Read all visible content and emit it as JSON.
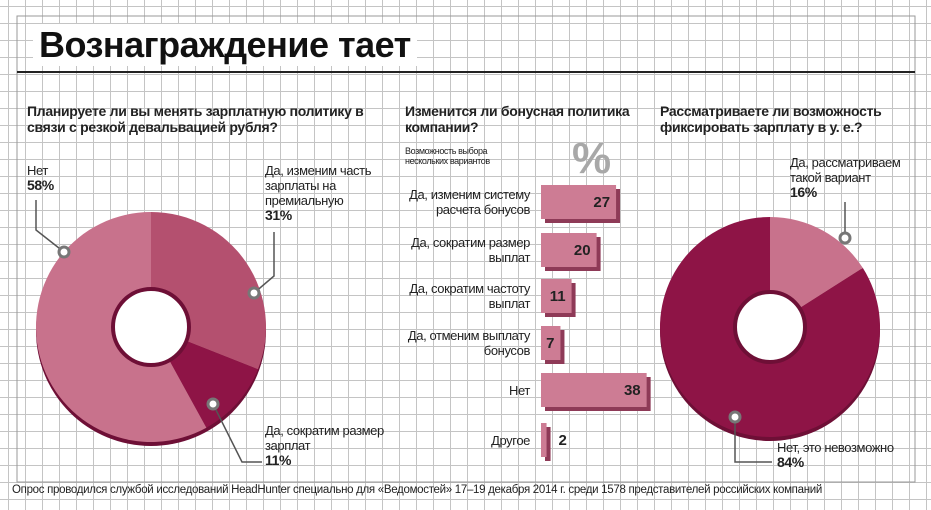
{
  "title": "Вознаграждение тает",
  "footnote": "Опрос проводился службой исследований HeadHunter специально для «Ведомостей» 17–19 декабря 2014 г. среди 1578 представителей российских компаний",
  "chart_data": [
    {
      "type": "donut",
      "title": "Планируете ли вы менять зарплатную политику в связи с резкой девальвацией рубля?",
      "categories": [
        "Да, изменим часть зарплаты на премиальную",
        "Да, сократим размер зарплат",
        "Нет"
      ],
      "values": [
        31,
        11,
        58
      ],
      "value_labels": [
        "31%",
        "11%",
        "58%"
      ],
      "colors": [
        "#b4506f",
        "#8e1446",
        "#c8728c"
      ]
    },
    {
      "type": "bar",
      "title": "Изменится ли бонусная политика компании?",
      "subtitle": "Возможность выбора нескольких вариантов",
      "unit": "%",
      "categories": [
        "Да, изменим систему расчета бонусов",
        "Да, сократим размер выплат",
        "Да, сократим частоту выплат",
        "Да, отменим выплату бонусов",
        "Нет",
        "Другое"
      ],
      "values": [
        27,
        20,
        11,
        7,
        38,
        2
      ],
      "color": "#cd7c94"
    },
    {
      "type": "donut",
      "title": "Рассматриваете ли возможность фиксировать зарплату в у. е.?",
      "categories": [
        "Да, рассматриваем такой вариант",
        "Нет, это невозможно"
      ],
      "values": [
        16,
        84
      ],
      "value_labels": [
        "16%",
        "84%"
      ],
      "colors": [
        "#c8728c",
        "#8e1446"
      ]
    }
  ]
}
